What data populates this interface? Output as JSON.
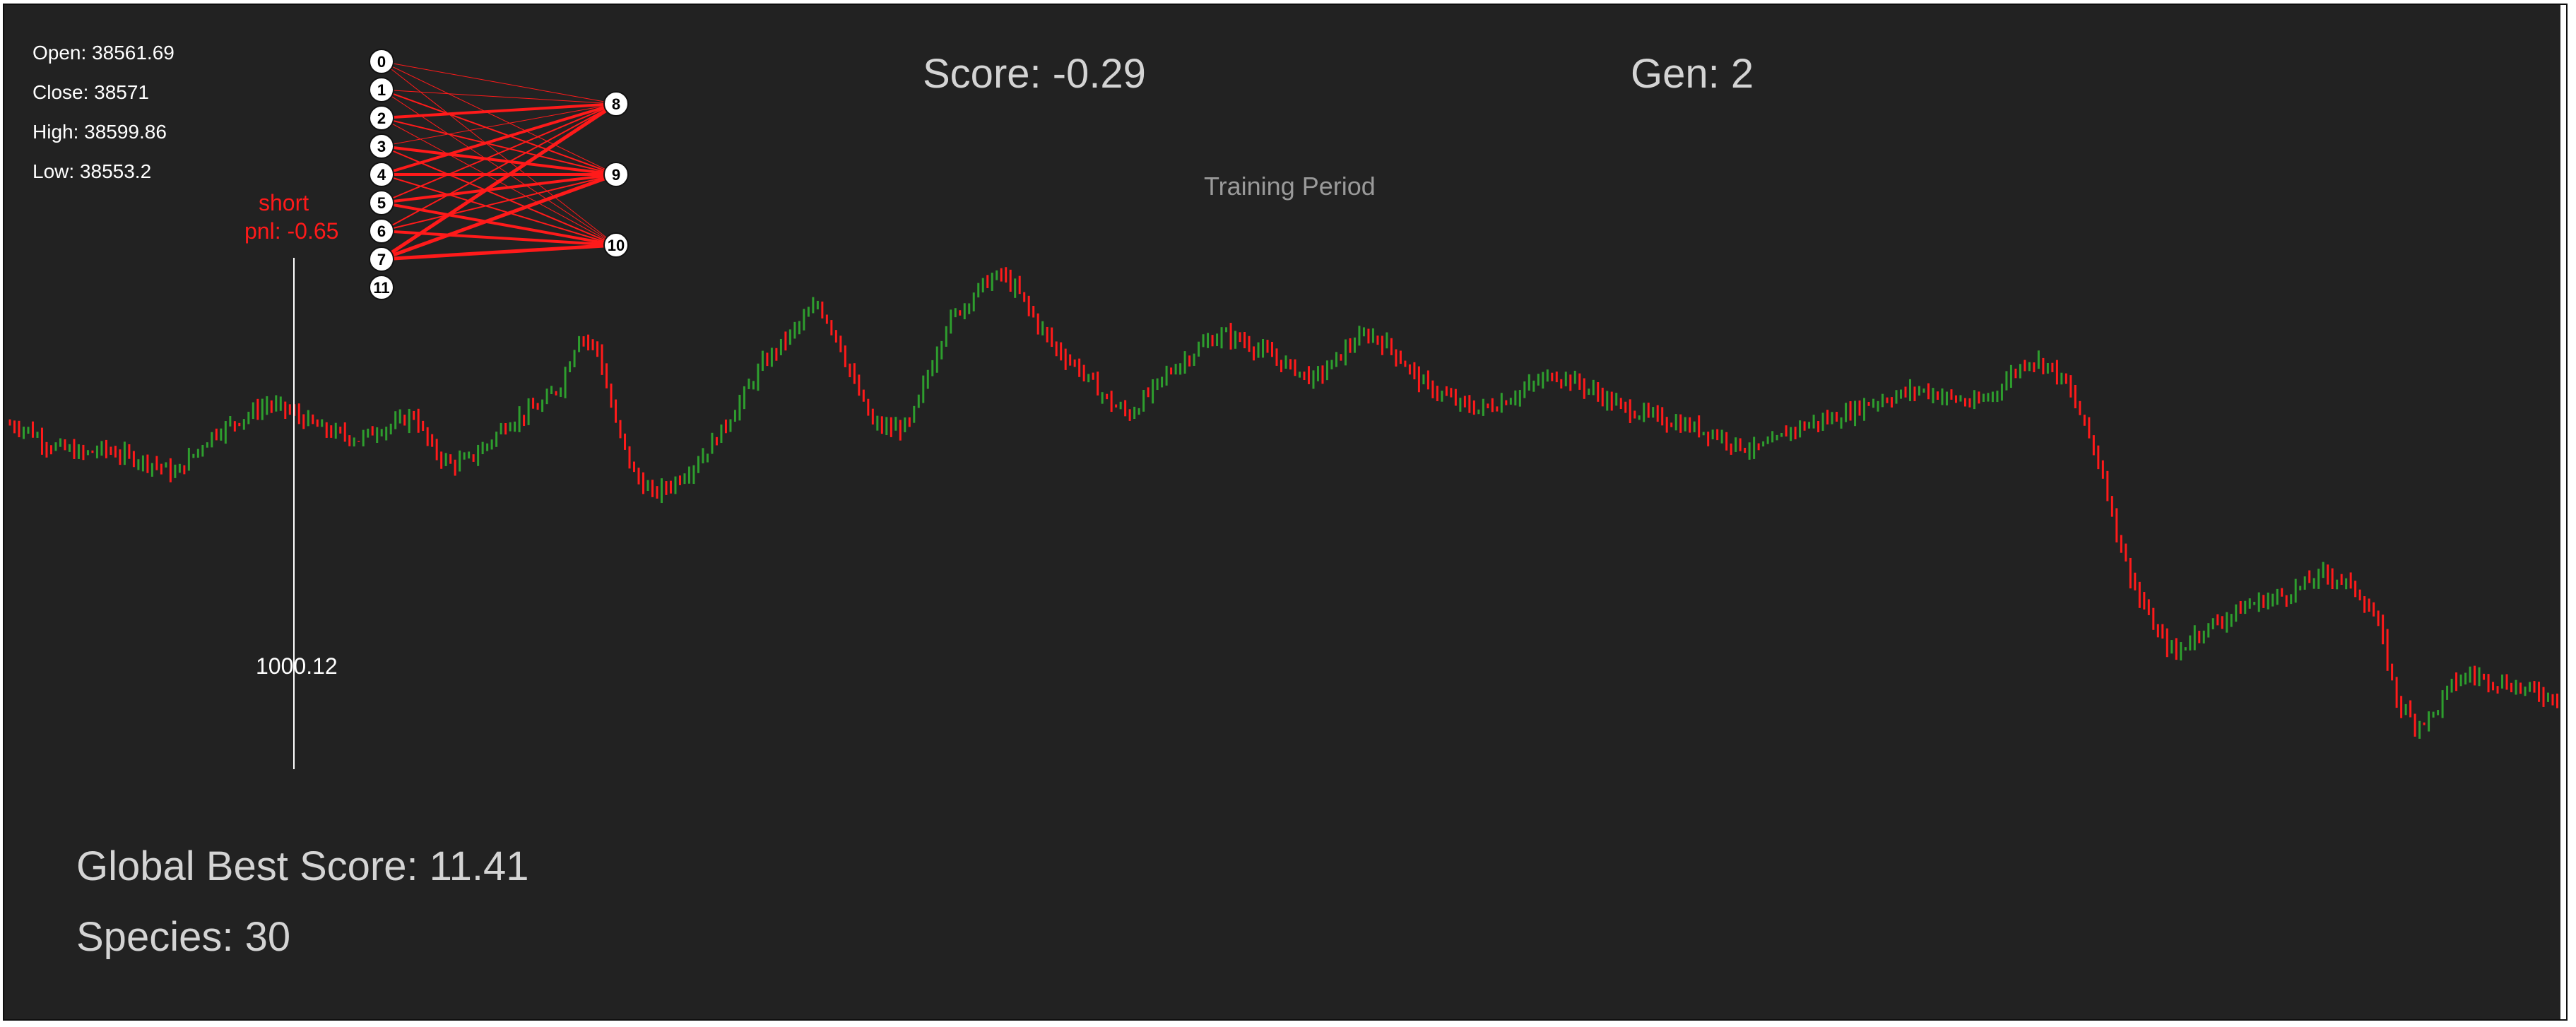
{
  "ohlc": {
    "open": "Open: 38561.69",
    "close": "Close: 38571",
    "high": "High: 38599.86",
    "low": "Low: 38553.2"
  },
  "score": "Score: -0.29",
  "generation": "Gen: 2",
  "period": "Training Period",
  "position": {
    "side": "short",
    "pnl": "pnl: -0.65",
    "balance": "1000.12"
  },
  "global_best": "Global Best Score: 11.41",
  "species": "Species: 30",
  "network": {
    "input_nodes": [
      "0",
      "1",
      "2",
      "3",
      "4",
      "5",
      "6",
      "7",
      "11"
    ],
    "output_nodes": [
      "8",
      "9",
      "10"
    ]
  },
  "colors": {
    "background": "#222222",
    "bull": "#2e9e2e",
    "bear": "#ff1a1a",
    "connection": "#ff1a1a",
    "text": "#d4d4d4"
  },
  "chart_data": {
    "type": "ohlc",
    "series": [
      {
        "name": "",
        "values": [
          38700,
          38690,
          38660,
          38650,
          38640,
          38650,
          38640,
          38630,
          38620,
          38600,
          38640,
          38680,
          38700,
          38720,
          38740,
          38730,
          38710,
          38690,
          38680,
          38670,
          38690,
          38700,
          38720,
          38650,
          38620,
          38630,
          38660,
          38700,
          38720,
          38740,
          38780,
          38880,
          38850,
          38700,
          38600,
          38560,
          38580,
          38610,
          38650,
          38700,
          38760,
          38820,
          38860,
          38900,
          38940,
          38880,
          38780,
          38700,
          38690,
          38700,
          38800,
          38900,
          38940,
          38980,
          39000,
          38960,
          38900,
          38850,
          38820,
          38780,
          38740,
          38720,
          38760,
          38800,
          38830,
          38860,
          38880,
          38870,
          38850,
          38830,
          38810,
          38790,
          38820,
          38860,
          38880,
          38860,
          38820,
          38780,
          38760,
          38740,
          38730,
          38740,
          38760,
          38780,
          38800,
          38790,
          38770,
          38750,
          38730,
          38720,
          38710,
          38700,
          38690,
          38680,
          38660,
          38650,
          38660,
          38690,
          38700,
          38710,
          38720,
          38740,
          38750,
          38760,
          38770,
          38760,
          38750,
          38740,
          38760,
          38800,
          38830,
          38820,
          38780,
          38700,
          38600,
          38450,
          38350,
          38280,
          38240,
          38280,
          38300,
          38320,
          38340,
          38350,
          38360,
          38380,
          38400,
          38390,
          38360,
          38300,
          38150,
          38100,
          38120,
          38180,
          38200,
          38190,
          38180,
          38170,
          38160,
          38150
        ]
      }
    ]
  }
}
